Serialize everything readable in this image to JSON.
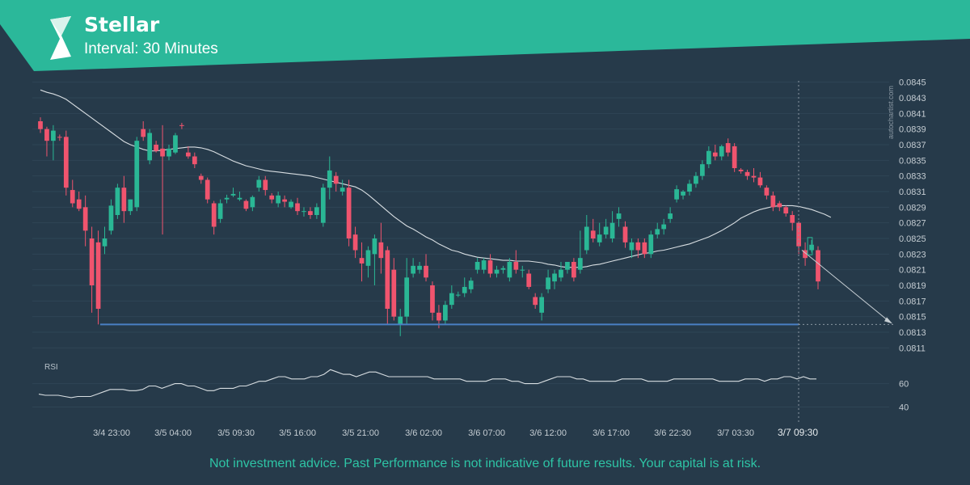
{
  "header": {
    "title": "Stellar",
    "subtitle": "Interval: 30 Minutes",
    "brand_color": "#2bb89a",
    "logo_icon": "stellar-logo-icon"
  },
  "watermark": "autochartist.com",
  "disclaimer": "Not investment advice. Past Performance is not indicative of future results. Your capital is at risk.",
  "rsi_label": "RSI",
  "chart_data": [
    {
      "type": "candlestick",
      "title": "",
      "ylim": [
        0.081,
        0.0846
      ],
      "y_ticks": [
        "0.0845",
        "0.0843",
        "0.0841",
        "0.0839",
        "0.0837",
        "0.0835",
        "0.0833",
        "0.0831",
        "0.0829",
        "0.0827",
        "0.0825",
        "0.0823",
        "0.0821",
        "0.0819",
        "0.0817",
        "0.0815",
        "0.0813",
        "0.0811"
      ],
      "x_ticks": [
        "3/4 23:00",
        "3/5 04:00",
        "3/5 09:30",
        "3/5 16:00",
        "3/5 21:00",
        "3/6 02:00",
        "3/6 07:00",
        "3/6 12:00",
        "3/6 17:00",
        "3/6 22:30",
        "3/7 03:30",
        "3/7 09:30"
      ],
      "highlight_x": "3/7 09:30",
      "up_color": "#2ab795",
      "down_color": "#f0546e",
      "candles": [
        {
          "o": 0.084,
          "h": 0.08405,
          "c": 0.0839,
          "l": 0.08385
        },
        {
          "o": 0.0839,
          "h": 0.08393,
          "c": 0.08375,
          "l": 0.08355
        },
        {
          "o": 0.08375,
          "h": 0.08395,
          "c": 0.08388,
          "l": 0.0835
        },
        {
          "o": 0.0838,
          "h": 0.08383,
          "c": 0.08379,
          "l": 0.08375
        },
        {
          "o": 0.0838,
          "h": 0.08388,
          "c": 0.08315,
          "l": 0.08305
        },
        {
          "o": 0.08312,
          "h": 0.08325,
          "c": 0.08295,
          "l": 0.0829
        },
        {
          "o": 0.083,
          "h": 0.0831,
          "c": 0.08288,
          "l": 0.08285
        },
        {
          "o": 0.0829,
          "h": 0.08305,
          "c": 0.0826,
          "l": 0.0824
        },
        {
          "o": 0.0825,
          "h": 0.08265,
          "c": 0.0819,
          "l": 0.08155
        },
        {
          "o": 0.08245,
          "h": 0.0826,
          "c": 0.0816,
          "l": 0.0814
        },
        {
          "o": 0.0824,
          "h": 0.08265,
          "c": 0.0825,
          "l": 0.0823
        },
        {
          "o": 0.0826,
          "h": 0.083,
          "c": 0.08292,
          "l": 0.08255
        },
        {
          "o": 0.0828,
          "h": 0.0832,
          "c": 0.08315,
          "l": 0.08275
        },
        {
          "o": 0.08315,
          "h": 0.0833,
          "c": 0.08285,
          "l": 0.0827
        },
        {
          "o": 0.08285,
          "h": 0.083,
          "c": 0.083,
          "l": 0.0828
        },
        {
          "o": 0.0829,
          "h": 0.0838,
          "c": 0.08375,
          "l": 0.08285
        },
        {
          "o": 0.0839,
          "h": 0.084,
          "c": 0.0838,
          "l": 0.08375
        },
        {
          "o": 0.0835,
          "h": 0.0839,
          "c": 0.08385,
          "l": 0.08345
        },
        {
          "o": 0.0837,
          "h": 0.08375,
          "c": 0.08362,
          "l": 0.0836
        },
        {
          "o": 0.08365,
          "h": 0.08395,
          "c": 0.08355,
          "l": 0.08255
        },
        {
          "o": 0.08355,
          "h": 0.0837,
          "c": 0.08365,
          "l": 0.0835
        },
        {
          "o": 0.0836,
          "h": 0.08385,
          "c": 0.08382,
          "l": 0.08358
        },
        {
          "o": 0.08395,
          "h": 0.08398,
          "c": 0.08394,
          "l": 0.0839
        },
        {
          "o": 0.0836,
          "h": 0.08368,
          "c": 0.08355,
          "l": 0.08352
        },
        {
          "o": 0.08355,
          "h": 0.0836,
          "c": 0.08345,
          "l": 0.0834
        },
        {
          "o": 0.0833,
          "h": 0.08333,
          "c": 0.08325,
          "l": 0.0832
        },
        {
          "o": 0.08325,
          "h": 0.08328,
          "c": 0.083,
          "l": 0.08295
        },
        {
          "o": 0.08295,
          "h": 0.08298,
          "c": 0.08265,
          "l": 0.08255
        },
        {
          "o": 0.08275,
          "h": 0.083,
          "c": 0.08295,
          "l": 0.0827
        },
        {
          "o": 0.083,
          "h": 0.08306,
          "c": 0.08302,
          "l": 0.08295
        },
        {
          "o": 0.08305,
          "h": 0.08315,
          "c": 0.08307,
          "l": 0.08303
        },
        {
          "o": 0.083,
          "h": 0.0831,
          "c": 0.08302,
          "l": 0.08298
        },
        {
          "o": 0.08298,
          "h": 0.083,
          "c": 0.08288,
          "l": 0.08285
        },
        {
          "o": 0.0829,
          "h": 0.08305,
          "c": 0.08303,
          "l": 0.08285
        },
        {
          "o": 0.08315,
          "h": 0.0833,
          "c": 0.08325,
          "l": 0.0831
        },
        {
          "o": 0.08325,
          "h": 0.0833,
          "c": 0.08312,
          "l": 0.08305
        },
        {
          "o": 0.08305,
          "h": 0.08308,
          "c": 0.083,
          "l": 0.08295
        },
        {
          "o": 0.08295,
          "h": 0.0831,
          "c": 0.08305,
          "l": 0.0829
        },
        {
          "o": 0.083,
          "h": 0.08305,
          "c": 0.08297,
          "l": 0.0829
        },
        {
          "o": 0.0829,
          "h": 0.083,
          "c": 0.08297,
          "l": 0.08288
        },
        {
          "o": 0.08295,
          "h": 0.08302,
          "c": 0.08285,
          "l": 0.0828
        },
        {
          "o": 0.08285,
          "h": 0.0829,
          "c": 0.08285,
          "l": 0.08278
        },
        {
          "o": 0.08285,
          "h": 0.0829,
          "c": 0.0828,
          "l": 0.08275
        },
        {
          "o": 0.0828,
          "h": 0.08295,
          "c": 0.0829,
          "l": 0.08275
        },
        {
          "o": 0.0827,
          "h": 0.0832,
          "c": 0.08315,
          "l": 0.08265
        },
        {
          "o": 0.08315,
          "h": 0.08355,
          "c": 0.08337,
          "l": 0.083
        },
        {
          "o": 0.0833,
          "h": 0.08335,
          "c": 0.0832,
          "l": 0.0831
        },
        {
          "o": 0.0831,
          "h": 0.08325,
          "c": 0.08315,
          "l": 0.08305
        },
        {
          "o": 0.08315,
          "h": 0.08325,
          "c": 0.0825,
          "l": 0.0824
        },
        {
          "o": 0.08255,
          "h": 0.08265,
          "c": 0.08235,
          "l": 0.08225
        },
        {
          "o": 0.08225,
          "h": 0.08245,
          "c": 0.08218,
          "l": 0.08195
        },
        {
          "o": 0.08215,
          "h": 0.0824,
          "c": 0.08235,
          "l": 0.082
        },
        {
          "o": 0.0823,
          "h": 0.08255,
          "c": 0.0825,
          "l": 0.0819
        },
        {
          "o": 0.08245,
          "h": 0.0827,
          "c": 0.08225,
          "l": 0.08205
        },
        {
          "o": 0.08235,
          "h": 0.0824,
          "c": 0.0816,
          "l": 0.0814
        },
        {
          "o": 0.0821,
          "h": 0.08225,
          "c": 0.0815,
          "l": 0.08145
        },
        {
          "o": 0.0814,
          "h": 0.0816,
          "c": 0.0815,
          "l": 0.08125
        },
        {
          "o": 0.0815,
          "h": 0.08225,
          "c": 0.082,
          "l": 0.0814
        },
        {
          "o": 0.08205,
          "h": 0.08225,
          "c": 0.08215,
          "l": 0.082
        },
        {
          "o": 0.0821,
          "h": 0.0822,
          "c": 0.08215,
          "l": 0.08205
        },
        {
          "o": 0.08215,
          "h": 0.0823,
          "c": 0.082,
          "l": 0.08195
        },
        {
          "o": 0.0819,
          "h": 0.08195,
          "c": 0.08155,
          "l": 0.08145
        },
        {
          "o": 0.08155,
          "h": 0.08165,
          "c": 0.08145,
          "l": 0.08135
        },
        {
          "o": 0.08145,
          "h": 0.0817,
          "c": 0.08165,
          "l": 0.0814
        },
        {
          "o": 0.08165,
          "h": 0.0819,
          "c": 0.0818,
          "l": 0.0816
        },
        {
          "o": 0.08178,
          "h": 0.08182,
          "c": 0.08178,
          "l": 0.08175
        },
        {
          "o": 0.0818,
          "h": 0.082,
          "c": 0.08188,
          "l": 0.08175
        },
        {
          "o": 0.08185,
          "h": 0.082,
          "c": 0.08196,
          "l": 0.0818
        },
        {
          "o": 0.0821,
          "h": 0.08225,
          "c": 0.0822,
          "l": 0.08205
        },
        {
          "o": 0.0821,
          "h": 0.08225,
          "c": 0.08222,
          "l": 0.08205
        },
        {
          "o": 0.08222,
          "h": 0.0823,
          "c": 0.08205,
          "l": 0.082
        },
        {
          "o": 0.08205,
          "h": 0.08215,
          "c": 0.0821,
          "l": 0.082
        },
        {
          "o": 0.0821,
          "h": 0.08215,
          "c": 0.08212,
          "l": 0.08205
        },
        {
          "o": 0.082,
          "h": 0.08225,
          "c": 0.0822,
          "l": 0.08195
        },
        {
          "o": 0.0822,
          "h": 0.08235,
          "c": 0.0821,
          "l": 0.08205
        },
        {
          "o": 0.0821,
          "h": 0.08215,
          "c": 0.0821,
          "l": 0.082
        },
        {
          "o": 0.08205,
          "h": 0.0821,
          "c": 0.08188,
          "l": 0.08185
        },
        {
          "o": 0.08175,
          "h": 0.0818,
          "c": 0.08165,
          "l": 0.0816
        },
        {
          "o": 0.08155,
          "h": 0.0818,
          "c": 0.08175,
          "l": 0.08145
        },
        {
          "o": 0.08185,
          "h": 0.0821,
          "c": 0.082,
          "l": 0.0818
        },
        {
          "o": 0.08195,
          "h": 0.0821,
          "c": 0.08205,
          "l": 0.08185
        },
        {
          "o": 0.082,
          "h": 0.0822,
          "c": 0.0821,
          "l": 0.08195
        },
        {
          "o": 0.0821,
          "h": 0.0822,
          "c": 0.0822,
          "l": 0.08205
        },
        {
          "o": 0.0822,
          "h": 0.08225,
          "c": 0.082,
          "l": 0.08195
        },
        {
          "o": 0.0821,
          "h": 0.0826,
          "c": 0.08225,
          "l": 0.08205
        },
        {
          "o": 0.08235,
          "h": 0.0828,
          "c": 0.08265,
          "l": 0.0823
        },
        {
          "o": 0.0826,
          "h": 0.08275,
          "c": 0.0825,
          "l": 0.08245
        },
        {
          "o": 0.08245,
          "h": 0.0827,
          "c": 0.08255,
          "l": 0.0824
        },
        {
          "o": 0.08255,
          "h": 0.08275,
          "c": 0.08265,
          "l": 0.0825
        },
        {
          "o": 0.0825,
          "h": 0.08285,
          "c": 0.0827,
          "l": 0.08245
        },
        {
          "o": 0.08275,
          "h": 0.0829,
          "c": 0.08282,
          "l": 0.08265
        },
        {
          "o": 0.08265,
          "h": 0.08272,
          "c": 0.08245,
          "l": 0.08238
        },
        {
          "o": 0.08235,
          "h": 0.0825,
          "c": 0.08245,
          "l": 0.08225
        },
        {
          "o": 0.08245,
          "h": 0.0825,
          "c": 0.08235,
          "l": 0.08225
        },
        {
          "o": 0.08245,
          "h": 0.0825,
          "c": 0.0823,
          "l": 0.08225
        },
        {
          "o": 0.0823,
          "h": 0.0826,
          "c": 0.08255,
          "l": 0.08225
        },
        {
          "o": 0.08255,
          "h": 0.0827,
          "c": 0.08262,
          "l": 0.0825
        },
        {
          "o": 0.08262,
          "h": 0.08275,
          "c": 0.08268,
          "l": 0.08255
        },
        {
          "o": 0.08275,
          "h": 0.0829,
          "c": 0.08282,
          "l": 0.0827
        },
        {
          "o": 0.083,
          "h": 0.08318,
          "c": 0.08313,
          "l": 0.08296
        },
        {
          "o": 0.08305,
          "h": 0.08312,
          "c": 0.0831,
          "l": 0.083
        },
        {
          "o": 0.0831,
          "h": 0.08325,
          "c": 0.0832,
          "l": 0.08305
        },
        {
          "o": 0.0832,
          "h": 0.08335,
          "c": 0.0833,
          "l": 0.08315
        },
        {
          "o": 0.0833,
          "h": 0.0835,
          "c": 0.08345,
          "l": 0.08325
        },
        {
          "o": 0.08345,
          "h": 0.08368,
          "c": 0.08362,
          "l": 0.0834
        },
        {
          "o": 0.0836,
          "h": 0.0837,
          "c": 0.08355,
          "l": 0.0835
        },
        {
          "o": 0.08355,
          "h": 0.0837,
          "c": 0.08368,
          "l": 0.0835
        },
        {
          "o": 0.08372,
          "h": 0.08378,
          "c": 0.0836,
          "l": 0.08355
        },
        {
          "o": 0.08368,
          "h": 0.08372,
          "c": 0.0834,
          "l": 0.08335
        },
        {
          "o": 0.08338,
          "h": 0.0834,
          "c": 0.08336,
          "l": 0.08333
        },
        {
          "o": 0.08335,
          "h": 0.08338,
          "c": 0.0833,
          "l": 0.08325
        },
        {
          "o": 0.0833,
          "h": 0.0834,
          "c": 0.08328,
          "l": 0.08322
        },
        {
          "o": 0.08328,
          "h": 0.08335,
          "c": 0.08318,
          "l": 0.08315
        },
        {
          "o": 0.08315,
          "h": 0.08318,
          "c": 0.08305,
          "l": 0.083
        },
        {
          "o": 0.08305,
          "h": 0.0831,
          "c": 0.0829,
          "l": 0.08285
        },
        {
          "o": 0.08295,
          "h": 0.08298,
          "c": 0.0829,
          "l": 0.08285
        },
        {
          "o": 0.0829,
          "h": 0.08292,
          "c": 0.08282,
          "l": 0.08278
        },
        {
          "o": 0.0828,
          "h": 0.08285,
          "c": 0.0827,
          "l": 0.0826
        },
        {
          "o": 0.0827,
          "h": 0.08272,
          "c": 0.0824,
          "l": 0.0823
        },
        {
          "o": 0.08235,
          "h": 0.08245,
          "c": 0.08225,
          "l": 0.08215
        },
        {
          "o": 0.08235,
          "h": 0.08248,
          "c": 0.08242,
          "l": 0.08232
        },
        {
          "o": 0.08235,
          "h": 0.0824,
          "c": 0.08195,
          "l": 0.08185
        }
      ],
      "moving_average": [
        0.0844,
        0.08437,
        0.08435,
        0.08432,
        0.08428,
        0.08422,
        0.08416,
        0.0841,
        0.08404,
        0.08398,
        0.08392,
        0.08386,
        0.0838,
        0.08374,
        0.0837,
        0.08367,
        0.08364,
        0.08362,
        0.08362,
        0.08363,
        0.08364,
        0.08365,
        0.08366,
        0.08367,
        0.08367,
        0.08366,
        0.08364,
        0.08361,
        0.08357,
        0.08353,
        0.08349,
        0.08346,
        0.08343,
        0.08341,
        0.08339,
        0.08337,
        0.08336,
        0.08335,
        0.08334,
        0.08333,
        0.08332,
        0.08331,
        0.0833,
        0.08328,
        0.08326,
        0.08324,
        0.08322,
        0.0832,
        0.08318,
        0.08316,
        0.08312,
        0.08306,
        0.08299,
        0.08292,
        0.08285,
        0.08278,
        0.08272,
        0.08266,
        0.08262,
        0.08257,
        0.08252,
        0.08248,
        0.08243,
        0.08239,
        0.08235,
        0.08233,
        0.0823,
        0.08228,
        0.08226,
        0.08225,
        0.08224,
        0.08223,
        0.08222,
        0.08222,
        0.08221,
        0.08221,
        0.08221,
        0.0822,
        0.08219,
        0.08217,
        0.08216,
        0.08214,
        0.08213,
        0.08213,
        0.08213,
        0.08214,
        0.08216,
        0.08217,
        0.08219,
        0.08221,
        0.08223,
        0.08225,
        0.08227,
        0.08229,
        0.08231,
        0.08232,
        0.08234,
        0.08235,
        0.08237,
        0.08239,
        0.08241,
        0.08243,
        0.08246,
        0.08249,
        0.08252,
        0.08256,
        0.0826,
        0.08265,
        0.0827,
        0.08276,
        0.0828,
        0.08284,
        0.08287,
        0.08289,
        0.08291,
        0.08292,
        0.08292,
        0.08292,
        0.08291,
        0.08289,
        0.08287,
        0.08284,
        0.08281,
        0.08277
      ],
      "support_level": 0.0814,
      "forecast": {
        "to_price": 0.0814
      },
      "annotation": {
        "o": 0.08245,
        "c": 0.08225
      }
    },
    {
      "type": "line",
      "title": "RSI",
      "ylim": [
        32,
        84
      ],
      "y_ticks": [
        60,
        40
      ],
      "values": [
        51,
        50,
        50,
        50,
        49,
        48,
        49,
        49,
        49,
        51,
        53,
        55,
        55,
        55,
        54,
        54,
        55,
        58,
        58,
        56,
        58,
        60,
        60,
        58,
        58,
        56,
        54,
        54,
        56,
        56,
        56,
        58,
        58,
        60,
        62,
        62,
        64,
        66,
        66,
        64,
        64,
        64,
        66,
        66,
        68,
        72,
        70,
        68,
        68,
        66,
        68,
        70,
        70,
        68,
        66,
        66,
        66,
        66,
        66,
        66,
        66,
        64,
        64,
        64,
        64,
        64,
        62,
        62,
        62,
        62,
        64,
        64,
        64,
        62,
        62,
        60,
        60,
        60,
        62,
        64,
        66,
        66,
        66,
        64,
        64,
        62,
        62,
        62,
        62,
        62,
        64,
        64,
        64,
        64,
        62,
        62,
        62,
        62,
        64,
        64,
        64,
        64,
        64,
        64,
        64,
        62,
        62,
        62,
        62,
        64,
        64,
        64,
        62,
        64,
        64,
        66,
        66,
        64,
        66,
        64,
        64
      ]
    }
  ]
}
